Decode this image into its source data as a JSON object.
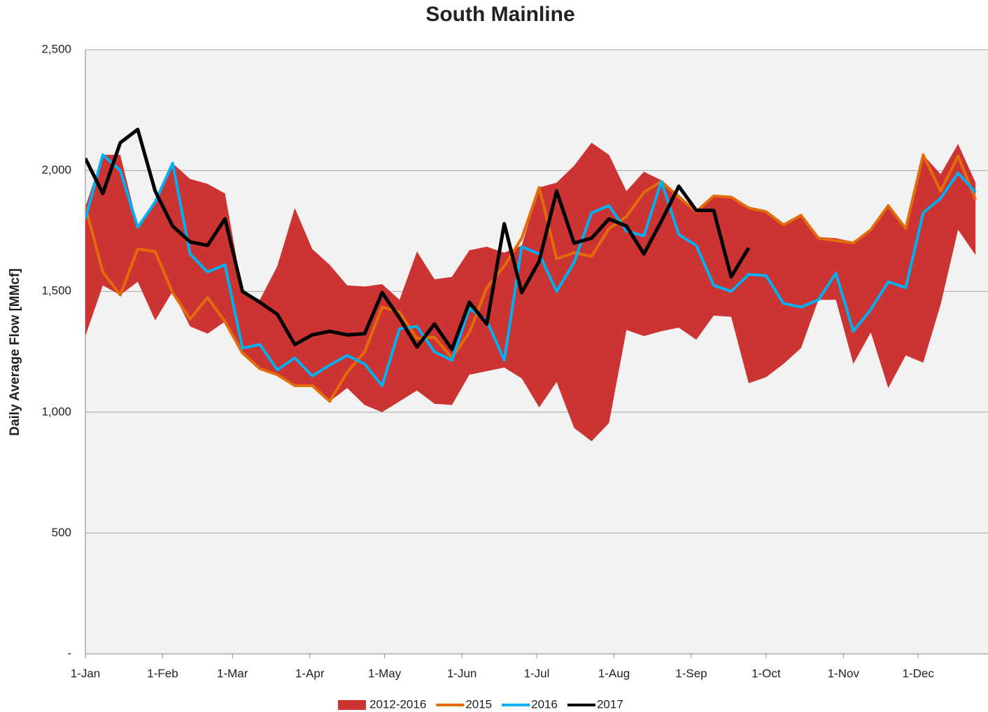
{
  "chart_data": {
    "type": "line",
    "title": "South Mainline",
    "y_label": "Daily Average Flow [MMcf]",
    "x": [
      0,
      7,
      14,
      21,
      28,
      35,
      42,
      49,
      56,
      63,
      70,
      77,
      84,
      91,
      98,
      105,
      112,
      119,
      126,
      133,
      140,
      147,
      154,
      161,
      168,
      175,
      182,
      189,
      196,
      203,
      210,
      217,
      224,
      231,
      238,
      245,
      252,
      259,
      266,
      273,
      280,
      287,
      294,
      301,
      308,
      315,
      322,
      329,
      336,
      343,
      350,
      357
    ],
    "xlim": [
      0,
      362
    ],
    "xticks": [
      {
        "value": 0,
        "label": "1-Jan"
      },
      {
        "value": 31,
        "label": "1-Feb"
      },
      {
        "value": 59,
        "label": "1-Mar"
      },
      {
        "value": 90,
        "label": "1-Apr"
      },
      {
        "value": 120,
        "label": "1-May"
      },
      {
        "value": 151,
        "label": "1-Jun"
      },
      {
        "value": 181,
        "label": "1-Jul"
      },
      {
        "value": 212,
        "label": "1-Aug"
      },
      {
        "value": 243,
        "label": "1-Sep"
      },
      {
        "value": 273,
        "label": "1-Oct"
      },
      {
        "value": 304,
        "label": "1-Nov"
      },
      {
        "value": 334,
        "label": "1-Dec"
      }
    ],
    "ylim": [
      0,
      2500
    ],
    "yticks": [
      {
        "value": 0,
        "label": "-"
      },
      500,
      {
        "value": 1000,
        "label": "1,000"
      },
      {
        "value": 1500,
        "label": "1,500"
      },
      {
        "value": 2000,
        "label": "2,000"
      },
      {
        "value": 2500,
        "label": "2,500"
      }
    ],
    "grid": true,
    "legend": "bottom",
    "series": [
      {
        "name": "2012-2016",
        "kind": "band",
        "color": "#cc3333",
        "high": [
          1850,
          2065,
          2065,
          1770,
          1880,
          2030,
          1965,
          1945,
          1905,
          1500,
          1465,
          1605,
          1845,
          1675,
          1610,
          1525,
          1520,
          1530,
          1465,
          1665,
          1550,
          1560,
          1670,
          1685,
          1660,
          1690,
          1930,
          1950,
          2020,
          2115,
          2065,
          1915,
          1995,
          1960,
          1900,
          1835,
          1895,
          1890,
          1845,
          1830,
          1775,
          1820,
          1725,
          1720,
          1705,
          1760,
          1855,
          1765,
          2065,
          1985,
          2110,
          1950
        ],
        "low": [
          1315,
          1525,
          1485,
          1540,
          1380,
          1500,
          1355,
          1325,
          1375,
          1245,
          1180,
          1155,
          1110,
          1110,
          1045,
          1100,
          1030,
          1000,
          1045,
          1090,
          1035,
          1030,
          1155,
          1170,
          1185,
          1140,
          1020,
          1125,
          935,
          880,
          955,
          1340,
          1315,
          1335,
          1350,
          1300,
          1400,
          1395,
          1120,
          1145,
          1200,
          1265,
          1465,
          1465,
          1200,
          1330,
          1100,
          1235,
          1205,
          1445,
          1755,
          1650
        ]
      },
      {
        "name": "2015",
        "color": "#e36c0a",
        "values": [
          1850,
          1580,
          1485,
          1675,
          1665,
          1495,
          1385,
          1475,
          1375,
          1245,
          1180,
          1155,
          1110,
          1110,
          1045,
          1165,
          1250,
          1435,
          1415,
          1305,
          1310,
          1225,
          1330,
          1515,
          1605,
          1720,
          1930,
          1635,
          1660,
          1645,
          1760,
          1810,
          1910,
          1955,
          1890,
          1830,
          1895,
          1890,
          1845,
          1830,
          1775,
          1815,
          1720,
          1710,
          1700,
          1755,
          1855,
          1760,
          2065,
          1915,
          2060,
          1880
        ]
      },
      {
        "name": "2016",
        "color": "#00b0f0",
        "values": [
          1800,
          2065,
          2000,
          1765,
          1870,
          2030,
          1655,
          1580,
          1610,
          1265,
          1280,
          1175,
          1225,
          1150,
          1195,
          1235,
          1200,
          1110,
          1345,
          1355,
          1250,
          1215,
          1430,
          1380,
          1215,
          1685,
          1655,
          1500,
          1620,
          1825,
          1855,
          1750,
          1730,
          1955,
          1735,
          1690,
          1525,
          1500,
          1570,
          1565,
          1450,
          1435,
          1465,
          1575,
          1335,
          1425,
          1540,
          1515,
          1825,
          1885,
          1990,
          1910
        ]
      },
      {
        "name": "2017",
        "color": "#000000",
        "values": [
          2050,
          1905,
          2115,
          2170,
          1915,
          1770,
          1705,
          1690,
          1800,
          1500,
          1455,
          1405,
          1280,
          1320,
          1335,
          1320,
          1325,
          1495,
          1390,
          1270,
          1365,
          1260,
          1455,
          1365,
          1780,
          1495,
          1625,
          1915,
          1700,
          1720,
          1800,
          1770,
          1655,
          1790,
          1935,
          1835,
          1835,
          1560,
          1680,
          null,
          null,
          null,
          null,
          null,
          null,
          null,
          null,
          null,
          null,
          null,
          null,
          null
        ]
      }
    ]
  }
}
